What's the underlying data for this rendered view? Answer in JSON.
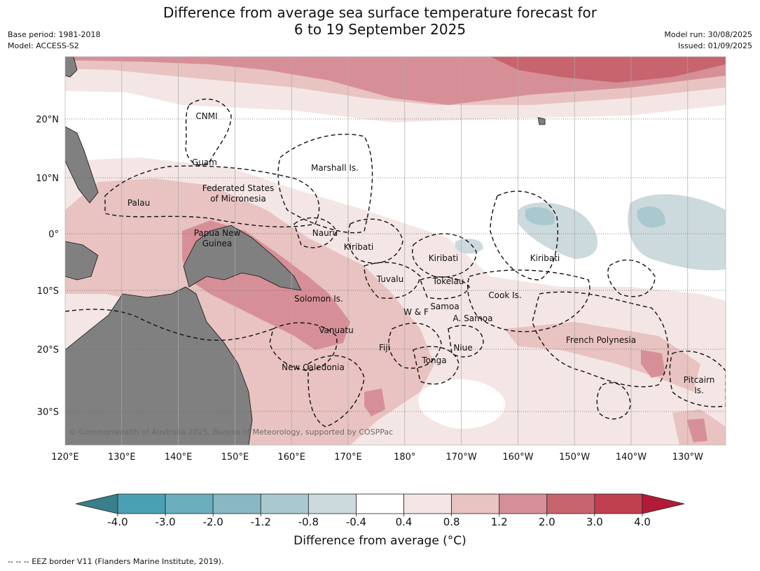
{
  "title": {
    "line1": "Difference from average sea surface temperature forecast for",
    "line2": "6 to 19 September 2025"
  },
  "meta": {
    "base_period": "Base period: 1981-2018",
    "model": "Model: ACCESS-S2",
    "model_run": "Model run: 30/08/2025",
    "issued": "Issued: 01/09/2025"
  },
  "map": {
    "lon_labels": [
      "120°E",
      "130°E",
      "140°E",
      "150°E",
      "160°E",
      "170°E",
      "180°",
      "170°W",
      "160°W",
      "150°W",
      "140°W",
      "130°W"
    ],
    "lat_labels": [
      "20°N",
      "10°N",
      "0°",
      "10°S",
      "20°S",
      "30°S"
    ],
    "copyright": "© Commonwealth of Australia 2025, Bureau of Meteorology, supported by COSPPac",
    "eez_labels": [
      {
        "name": "cnmi",
        "text": "CNMI"
      },
      {
        "name": "guam",
        "text": "Guam"
      },
      {
        "name": "marshall",
        "text": "Marshall Is."
      },
      {
        "name": "fsm1",
        "text": "Federated States"
      },
      {
        "name": "fsm2",
        "text": "of Micronesia"
      },
      {
        "name": "palau",
        "text": "Palau"
      },
      {
        "name": "png1",
        "text": "Papua New"
      },
      {
        "name": "png2",
        "text": "Guinea"
      },
      {
        "name": "nauru",
        "text": "Nauru"
      },
      {
        "name": "kiribati-w",
        "text": "Kiribati"
      },
      {
        "name": "kiribati-c",
        "text": "Kiribati"
      },
      {
        "name": "kiribati-e",
        "text": "Kiribati"
      },
      {
        "name": "tuvalu",
        "text": "Tuvalu"
      },
      {
        "name": "tokelau",
        "text": "Tokelau"
      },
      {
        "name": "cook",
        "text": "Cook Is."
      },
      {
        "name": "solomon",
        "text": "Solomon Is."
      },
      {
        "name": "wf",
        "text": "W & F"
      },
      {
        "name": "samoa",
        "text": "Samoa"
      },
      {
        "name": "asamoa",
        "text": "A. Samoa"
      },
      {
        "name": "vanuatu",
        "text": "Vanuatu"
      },
      {
        "name": "fiji",
        "text": "Fiji"
      },
      {
        "name": "niue",
        "text": "Niue"
      },
      {
        "name": "tonga",
        "text": "Tonga"
      },
      {
        "name": "frpoly",
        "text": "French Polynesia"
      },
      {
        "name": "newcal",
        "text": "New Caledonia"
      },
      {
        "name": "pitcairn1",
        "text": "Pitcairn"
      },
      {
        "name": "pitcairn2",
        "text": "Is."
      }
    ]
  },
  "colorbar": {
    "title": "Difference from average (°C)",
    "tick_labels": [
      "-4.0",
      "-3.0",
      "-2.0",
      "-1.2",
      "-0.8",
      "-0.4",
      "0.4",
      "0.8",
      "1.2",
      "2.0",
      "3.0",
      "4.0"
    ],
    "colors": [
      "#3a7f8c",
      "#4aa0b3",
      "#6aaebe",
      "#89b7c4",
      "#a9c8cf",
      "#ccd9dd",
      "#ffffff",
      "#f4e6e5",
      "#e8c3c1",
      "#d78f97",
      "#c7646e",
      "#c0404f",
      "#b5193a"
    ]
  },
  "eez_note": "--  --  -- EEZ border V11 (Flanders Marine Institute, 2019)."
}
